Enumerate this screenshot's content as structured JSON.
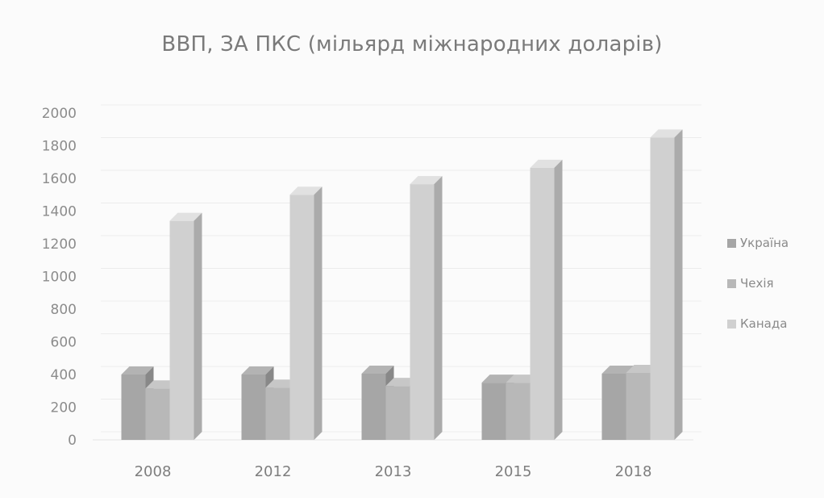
{
  "chart_data": {
    "type": "bar",
    "title": "ВВП, ЗА ПКС (мільярд міжнародних доларів)",
    "categories": [
      "2008",
      "2012",
      "2013",
      "2015",
      "2018"
    ],
    "series": [
      {
        "name": "Україна",
        "values": [
          400,
          400,
          405,
          350,
          405
        ],
        "color": "#a6a6a6"
      },
      {
        "name": "Чехія",
        "values": [
          315,
          320,
          330,
          350,
          410
        ],
        "color": "#b8b8b8"
      },
      {
        "name": "Канада",
        "values": [
          1340,
          1500,
          1565,
          1665,
          1850
        ],
        "color": "#d0d0d0"
      }
    ],
    "ylim": [
      0,
      2000
    ],
    "yticks": [
      0,
      200,
      400,
      600,
      800,
      1000,
      1200,
      1400,
      1600,
      1800,
      2000
    ],
    "grid": true,
    "legend_position": "right",
    "style": "3d-clustered-column"
  }
}
